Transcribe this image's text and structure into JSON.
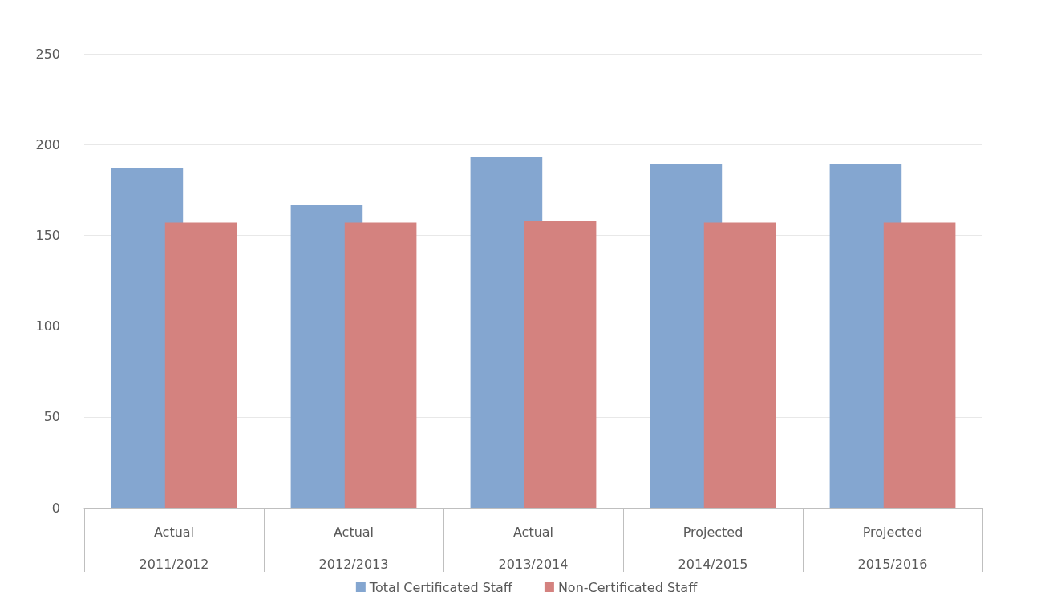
{
  "chart_data": {
    "type": "bar",
    "categories": [
      "Actual\n2011/2012",
      "Actual\n2012/2013",
      "Actual\n2013/2014",
      "Projected\n2014/2015",
      "Projected\n2015/2016"
    ],
    "series": [
      {
        "name": "Total Certificated Staff",
        "color": "#84a6d0",
        "values": [
          187,
          167,
          193,
          189,
          189
        ]
      },
      {
        "name": "Non-Certificated Staff",
        "color": "#d4827f",
        "values": [
          157,
          157,
          158,
          157,
          157
        ]
      }
    ],
    "ylim": [
      0,
      250
    ],
    "yticks": [
      0,
      50,
      100,
      150,
      200,
      250
    ],
    "grid": "y",
    "legend": "bottom"
  }
}
